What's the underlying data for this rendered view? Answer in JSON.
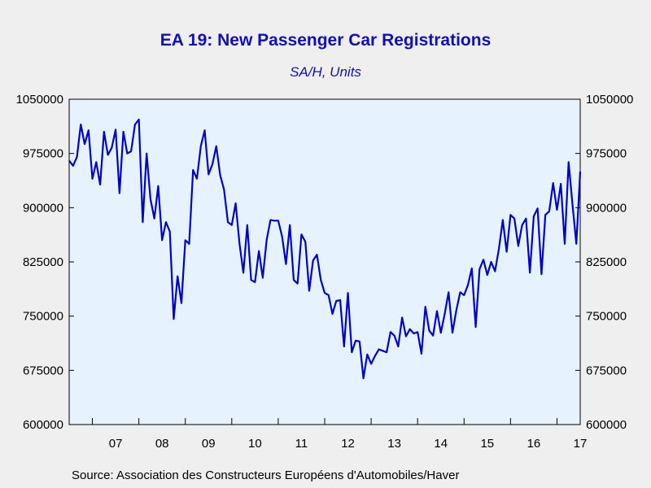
{
  "title": "EA 19: New Passenger Car Registrations",
  "subtitle": "SA/H, Units",
  "source": "Source:  Association des Constructeurs Européens d'Automobiles/Haver",
  "colors": {
    "line": "#0000c0",
    "plot_bg": "#e6f3ff",
    "page_bg": "#efefef",
    "text": "#1010b4"
  },
  "chart_data": {
    "type": "line",
    "title": "EA 19: New Passenger Car Registrations",
    "subtitle": "SA/H, Units",
    "xlabel": "",
    "ylabel": "",
    "ylim": [
      600000,
      1050000
    ],
    "y_ticks": [
      600000,
      675000,
      750000,
      825000,
      900000,
      975000,
      1050000
    ],
    "y_tick_labels": [
      "600000",
      "675000",
      "750000",
      "825000",
      "900000",
      "975000",
      "1050000"
    ],
    "x_start": "2006-07",
    "x_labels": [
      "07",
      "08",
      "09",
      "10",
      "11",
      "12",
      "13",
      "14",
      "15",
      "16",
      "17"
    ],
    "grid": false,
    "legend": "none",
    "series": [
      {
        "values": [
          965000,
          958000,
          970000,
          1015000,
          988000,
          1007000,
          940000,
          963000,
          932000,
          1005000,
          973000,
          983000,
          1008000,
          920000,
          1005000,
          975000,
          978000,
          1015000,
          1022000,
          880000,
          975000,
          912000,
          885000,
          930000,
          855000,
          880000,
          867000,
          746000,
          805000,
          768000,
          855000,
          850000,
          952000,
          940000,
          985000,
          1007000,
          946000,
          960000,
          985000,
          945000,
          925000,
          880000,
          876000,
          906000,
          850000,
          810000,
          876000,
          800000,
          797000,
          840000,
          803000,
          855000,
          883000,
          882000,
          882000,
          860000,
          822000,
          876000,
          800000,
          795000,
          863000,
          853000,
          785000,
          827000,
          835000,
          800000,
          782000,
          779000,
          753000,
          771000,
          772000,
          708000,
          782000,
          700000,
          716000,
          715000,
          664000,
          697000,
          684000,
          695000,
          704000,
          702000,
          700000,
          728000,
          723000,
          708000,
          748000,
          722000,
          732000,
          726000,
          728000,
          698000,
          763000,
          730000,
          723000,
          757000,
          727000,
          753000,
          783000,
          727000,
          758000,
          783000,
          779000,
          793000,
          816000,
          735000,
          815000,
          828000,
          807000,
          825000,
          812000,
          843000,
          883000,
          839000,
          890000,
          885000,
          847000,
          876000,
          885000,
          810000,
          888000,
          899000,
          808000,
          890000,
          895000,
          934000,
          897000,
          933000,
          850000,
          963000,
          905000,
          850000,
          950000
        ]
      }
    ]
  }
}
